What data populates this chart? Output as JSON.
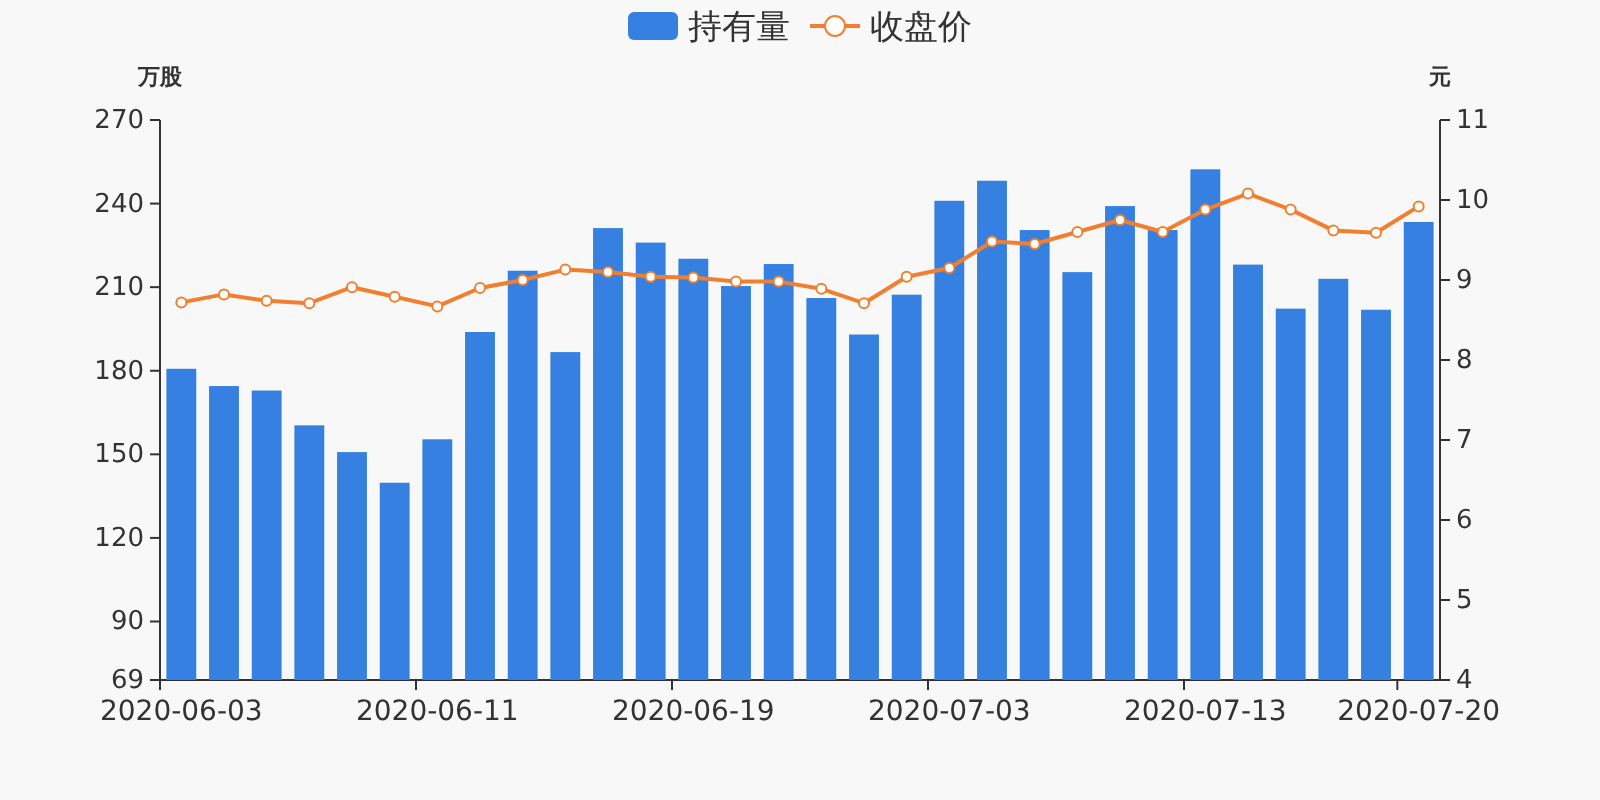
{
  "chart_data": {
    "type": "bar",
    "ylabel": "万股",
    "y2label": "元",
    "legend": "top",
    "grid": false,
    "categories": [
      "2020-06-03",
      null,
      null,
      null,
      null,
      null,
      "2020-06-11",
      null,
      null,
      null,
      null,
      null,
      "2020-06-19",
      null,
      null,
      null,
      null,
      null,
      "2020-07-03",
      null,
      null,
      null,
      null,
      null,
      "2020-07-13",
      null,
      null,
      null,
      null,
      "2020-07-20"
    ],
    "ylim": [
      69,
      270
    ],
    "yticks": [
      69,
      90,
      120,
      150,
      180,
      210,
      240,
      270
    ],
    "y2lim": [
      4,
      11
    ],
    "y2ticks": [
      4,
      5,
      6,
      7,
      8,
      9,
      10,
      11
    ],
    "series": [
      {
        "name": "持有量",
        "color": "#3580e0",
        "values": [
          180.7,
          174.5,
          172.9,
          160.4,
          150.8,
          139.8,
          155.4,
          193.9,
          215.9,
          186.7,
          231.2,
          226,
          220.2,
          210.4,
          218.3,
          206.1,
          193,
          207.3,
          241,
          248.2,
          230.5,
          215.4,
          239.1,
          230.5,
          252.3,
          218.1,
          202.3,
          213,
          201.9,
          233.4
        ]
      },
      {
        "name": "收盘价",
        "type": "line",
        "axis": "y2",
        "color": "#f08030",
        "marker": "circle",
        "values": [
          8.72,
          8.82,
          8.74,
          8.71,
          8.91,
          8.79,
          8.67,
          8.9,
          9.0,
          9.13,
          9.1,
          9.04,
          9.03,
          8.98,
          8.98,
          8.89,
          8.71,
          9.04,
          9.15,
          9.48,
          9.45,
          9.6,
          9.75,
          9.6,
          9.88,
          10.08,
          9.88,
          9.62,
          9.59,
          9.92
        ]
      }
    ]
  }
}
